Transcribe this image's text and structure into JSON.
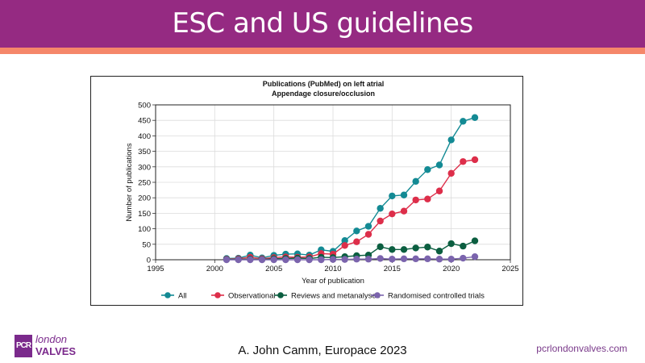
{
  "slide": {
    "title": "ESC and US guidelines",
    "citation": "A. John Camm, Europace 2023",
    "website": "pcrlondonvalves.com",
    "logo": {
      "box_text": "PCR",
      "line1": "london",
      "line2": "VALVES"
    },
    "colors": {
      "header": "#952a82",
      "stripe": "#f5876a"
    }
  },
  "chart_data": {
    "type": "line",
    "title": "Publications (PubMed) on left atrial",
    "subtitle": "Appendage closure/occlusion",
    "xlabel": "Year of publication",
    "ylabel": "Number of publications",
    "xlim": [
      1995,
      2025
    ],
    "ylim": [
      0,
      500
    ],
    "xticks": [
      1995,
      2000,
      2005,
      2010,
      2015,
      2020,
      2025
    ],
    "yticks": [
      0,
      50,
      100,
      150,
      200,
      250,
      300,
      350,
      400,
      450,
      500
    ],
    "grid": true,
    "legend_position": "bottom",
    "x": [
      2001,
      2002,
      2003,
      2004,
      2005,
      2006,
      2007,
      2008,
      2009,
      2010,
      2011,
      2012,
      2013,
      2014,
      2015,
      2016,
      2017,
      2018,
      2019,
      2020,
      2021,
      2022
    ],
    "series": [
      {
        "name": "All",
        "color": "#138a94",
        "values": [
          4,
          5,
          15,
          6,
          14,
          18,
          19,
          15,
          32,
          27,
          62,
          93,
          108,
          166,
          206,
          209,
          253,
          291,
          306,
          387,
          447,
          459
        ]
      },
      {
        "name": "Observational",
        "color": "#dd2e4a",
        "values": [
          2,
          3,
          8,
          3,
          7,
          9,
          8,
          9,
          20,
          18,
          46,
          58,
          82,
          125,
          148,
          157,
          193,
          196,
          222,
          279,
          317,
          323
        ]
      },
      {
        "name": "Reviews and metanalyses",
        "color": "#0b5e40",
        "values": [
          1,
          1,
          2,
          1,
          3,
          4,
          5,
          4,
          8,
          7,
          10,
          13,
          15,
          42,
          33,
          33,
          38,
          41,
          28,
          52,
          44,
          61
        ]
      },
      {
        "name": "Randomised controlled trials",
        "color": "#7b64ad",
        "values": [
          0,
          0,
          0,
          0,
          0,
          0,
          0,
          0,
          0,
          1,
          1,
          2,
          2,
          4,
          2,
          3,
          3,
          3,
          2,
          2,
          5,
          10
        ]
      }
    ]
  }
}
